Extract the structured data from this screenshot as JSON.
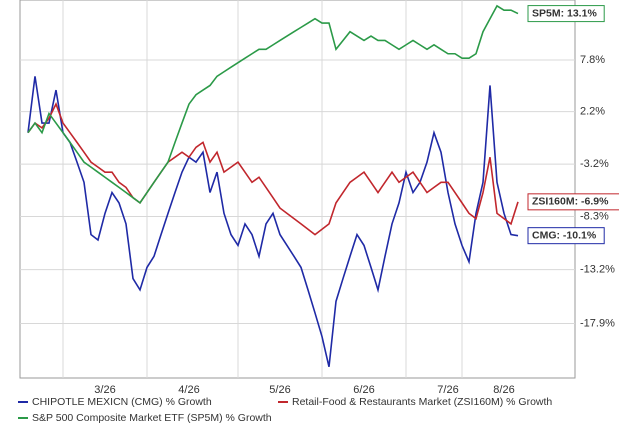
{
  "chart_data": {
    "type": "line",
    "categories": [
      null,
      null,
      null,
      null,
      null,
      null,
      null,
      null,
      null,
      null,
      null,
      "3/26",
      null,
      null,
      null,
      null,
      null,
      null,
      null,
      null,
      null,
      null,
      null,
      "4/26",
      null,
      null,
      null,
      null,
      null,
      null,
      null,
      null,
      null,
      null,
      null,
      null,
      "5/26",
      null,
      null,
      null,
      null,
      null,
      null,
      null,
      null,
      null,
      null,
      null,
      "6/26",
      null,
      null,
      null,
      null,
      null,
      null,
      null,
      null,
      null,
      null,
      null,
      "7/26",
      null,
      null,
      null,
      null,
      null,
      null,
      null,
      "8/26",
      null,
      null
    ],
    "series": [
      {
        "name": "CHIPOTLE MEXICN (CMG) % Growth",
        "color": "#1f2aa6",
        "end_label": "CMG: -10.1%",
        "values": [
          0,
          6,
          1,
          1,
          4.5,
          0,
          -1,
          -3,
          -5,
          -10,
          -10.5,
          -8,
          -6,
          -7,
          -9,
          -14,
          -15,
          -13,
          -12,
          -10,
          -8,
          -6,
          -4,
          -2.5,
          -3,
          -2,
          -6,
          -4,
          -8,
          -10,
          -11,
          -9,
          -10,
          -12,
          -9,
          -8,
          -10,
          -11,
          -12,
          -13,
          -15,
          -17,
          -19,
          -21.5,
          -16,
          -14,
          -12,
          -10,
          -11,
          -13,
          -15,
          -12,
          -9,
          -7,
          -4,
          -6,
          -5,
          -3,
          0,
          -2,
          -6,
          -9,
          -11,
          -12.5,
          -8,
          -5,
          5,
          -5,
          -8,
          -10,
          -10.1
        ]
      },
      {
        "name": "Retail-Food & Restaurants Market (ZSI160M) % Growth",
        "color": "#c1272d",
        "end_label": "ZSI160M: -6.9%",
        "values": [
          0,
          1,
          0.5,
          1.5,
          3,
          1,
          0,
          -1,
          -2,
          -3,
          -3.5,
          -4,
          -4,
          -5,
          -5.5,
          -6.5,
          -7,
          -6,
          -5,
          -4,
          -3,
          -2.5,
          -2,
          -2.5,
          -1.5,
          -1,
          -3,
          -2,
          -4,
          -3.5,
          -3,
          -4,
          -5,
          -4.5,
          -5.5,
          -6.5,
          -7.5,
          -8,
          -8.5,
          -9,
          -9.5,
          -10,
          -9.5,
          -9,
          -7,
          -6,
          -5,
          -4.5,
          -4,
          -5,
          -6,
          -5,
          -4,
          -5,
          -4.5,
          -4,
          -5,
          -6,
          -5.5,
          -5,
          -5,
          -6,
          -7,
          -8,
          -8.5,
          -6,
          -2.5,
          -8,
          -8.5,
          -9,
          -6.9
        ]
      },
      {
        "name": "S&P 500 Composite Market ETF (SP5M) % Growth",
        "color": "#2b9a48",
        "end_label": "SP5M: 13.1%",
        "values": [
          0,
          1,
          0,
          2,
          1,
          0,
          -1,
          -2,
          -3,
          -3.5,
          -4,
          -4.5,
          -5,
          -5.5,
          -6,
          -6.5,
          -7,
          -6,
          -5,
          -4,
          -3,
          -1,
          1,
          3,
          4,
          4.5,
          5,
          6,
          6.5,
          7,
          7.5,
          8,
          8.5,
          9,
          9,
          9.5,
          10,
          10.5,
          11,
          11.5,
          12,
          12.5,
          12,
          12,
          9,
          10,
          11,
          10.5,
          10,
          10.5,
          10,
          10,
          9.5,
          9,
          9.5,
          10,
          9.5,
          9,
          9.5,
          9,
          8.5,
          8.5,
          8,
          8,
          8.5,
          11,
          12.5,
          14,
          13.5,
          13.5,
          13.1
        ]
      }
    ],
    "ylim": [
      -22.4,
      14.7
    ],
    "ylog": true,
    "yticks": [
      {
        "value": 7.8,
        "label": "7.8%"
      },
      {
        "value": 2.2,
        "label": "2.2%"
      },
      {
        "value": -3.2,
        "label": "-3.2%"
      },
      {
        "value": -8.3,
        "label": "-8.3%"
      },
      {
        "value": -13.2,
        "label": "-13.2%"
      },
      {
        "value": -17.9,
        "label": "-17.9%"
      }
    ],
    "grid": true
  }
}
